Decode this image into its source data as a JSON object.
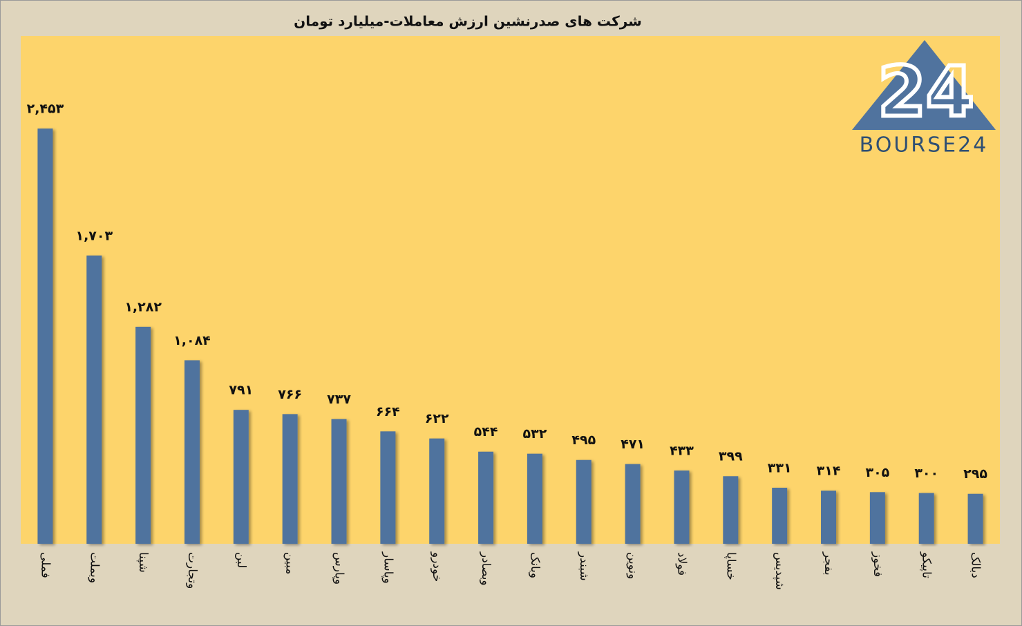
{
  "chart_data": {
    "type": "bar",
    "title": "شرکت های صدرنشین ارزش معاملات-میلیارد تومان",
    "logo": {
      "mark": "24",
      "text": "BOURSE24"
    },
    "categories": [
      "فملی",
      "وبملت",
      "شپنا",
      "وتجارت",
      "لبن",
      "مبین",
      "وپارس",
      "وپاسار",
      "خودرو",
      "وبصادر",
      "وبانک",
      "شبندر",
      "ونوین",
      "فولاد",
      "خساپا",
      "شپدیس",
      "بفجر",
      "فخوز",
      "تاپیکو",
      "دبالک"
    ],
    "values": [
      2453,
      1703,
      1282,
      1084,
      791,
      766,
      737,
      664,
      622,
      544,
      532,
      495,
      471,
      433,
      399,
      331,
      314,
      305,
      300,
      295
    ],
    "value_labels": [
      "۲,۴۵۳",
      "۱,۷۰۳",
      "۱,۲۸۲",
      "۱,۰۸۴",
      "۷۹۱",
      "۷۶۶",
      "۷۳۷",
      "۶۶۴",
      "۶۲۲",
      "۵۴۴",
      "۵۳۲",
      "۴۹۵",
      "۴۷۱",
      "۴۳۳",
      "۳۹۹",
      "۳۳۱",
      "۳۱۴",
      "۳۰۵",
      "۳۰۰",
      "۲۹۵"
    ],
    "color": "#50739e",
    "ylim": [
      0,
      3000
    ]
  }
}
